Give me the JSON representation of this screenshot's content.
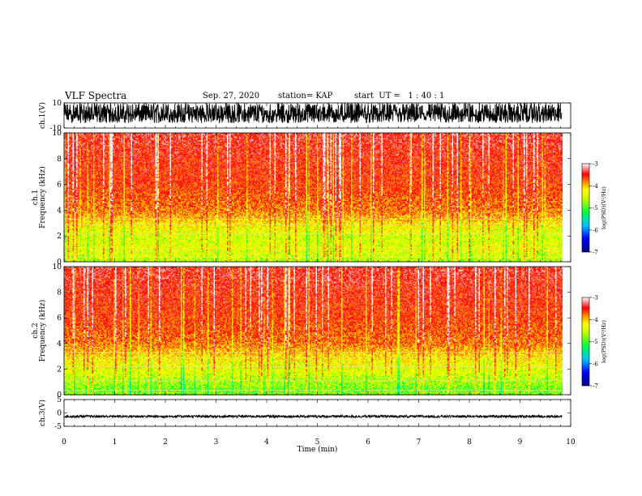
{
  "header": {
    "title": "VLF Spectra",
    "date": "Sep. 27, 2020",
    "station": "station= KAP",
    "start": "start  UT =   1 : 40 : 1"
  },
  "chart_data": [
    {
      "type": "line",
      "panel": "ch1-waveform",
      "ylabel": "ch.1(V)",
      "ylim": [
        -10,
        10
      ],
      "y_ticks": [
        "10",
        "-10"
      ],
      "xlim": [
        0,
        10
      ],
      "data_extent_x": [
        0,
        9.83
      ],
      "description_of_values": "dense oscillating signal filling roughly -6 to +10 V",
      "amplitude_range": [
        -6,
        10
      ],
      "color": "#000000"
    },
    {
      "type": "heatmap",
      "panel": "ch1-spectrogram",
      "ylabel": "ch.1\nFrequency  (kHz)",
      "ylim": [
        0,
        10
      ],
      "y_ticks": [
        "0",
        "2",
        "4",
        "6",
        "8",
        "10"
      ],
      "xlim": [
        0,
        10
      ],
      "data_extent_x": [
        0,
        9.83
      ],
      "colorbar": {
        "label": "log(PSD)(V²/Hz)",
        "range": [
          -7,
          -3
        ],
        "ticks": [
          "-3",
          "-4",
          "-5",
          "-6",
          "-7"
        ]
      },
      "band_profile": {
        "freq_khz": [
          0,
          0.5,
          1,
          2,
          3,
          4,
          6,
          8,
          10
        ],
        "log_psd": [
          -4.6,
          -4.4,
          -4.3,
          -4.4,
          -4.1,
          -3.8,
          -3.6,
          -3.5,
          -3.4
        ]
      }
    },
    {
      "type": "heatmap",
      "panel": "ch2-spectrogram",
      "ylabel": "ch.2\nFrequency  (kHz)",
      "ylim": [
        0,
        10
      ],
      "y_ticks": [
        "0",
        "2",
        "4",
        "6",
        "8",
        "10"
      ],
      "xlim": [
        0,
        10
      ],
      "data_extent_x": [
        0,
        9.83
      ],
      "colorbar": {
        "label": "log(PSD)(V²/Hz)",
        "range": [
          -7,
          -3
        ],
        "ticks": [
          "-3",
          "-4",
          "-5",
          "-6",
          "-7"
        ]
      },
      "band_profile": {
        "freq_khz": [
          0,
          0.5,
          1,
          2,
          3,
          4,
          6,
          8,
          10
        ],
        "log_psd": [
          -4.7,
          -4.8,
          -4.6,
          -4.3,
          -4.1,
          -3.8,
          -3.6,
          -3.5,
          -3.4
        ]
      }
    },
    {
      "type": "line",
      "panel": "ch3-waveform",
      "ylabel": "ch.3(V)",
      "ylim": [
        -5,
        5
      ],
      "y_ticks": [
        "5",
        "0",
        "-5"
      ],
      "xlim": [
        0,
        10
      ],
      "data_extent_x": [
        0,
        9.83
      ],
      "amplitude_range": [
        -1.8,
        -0.8
      ],
      "color": "#000000",
      "xlabel": "Time  (min)",
      "x_ticks": [
        "0",
        "1",
        "2",
        "3",
        "4",
        "5",
        "6",
        "7",
        "8",
        "9",
        "10"
      ]
    }
  ]
}
